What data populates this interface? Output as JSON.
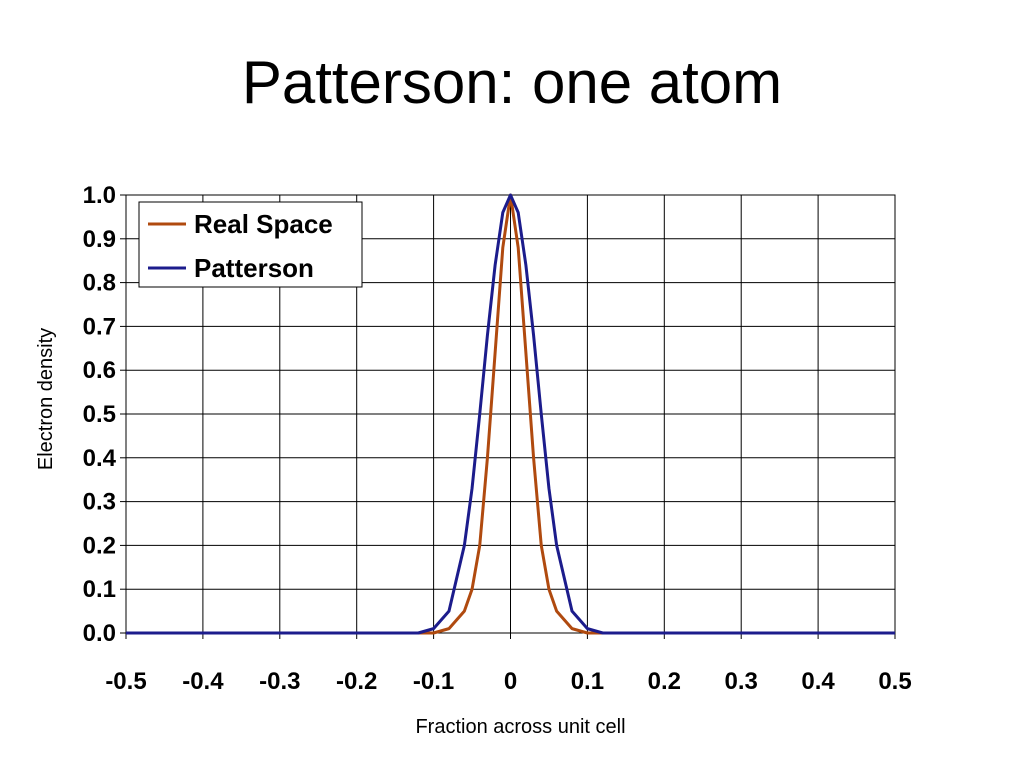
{
  "slide": {
    "title": "Patterson: one atom"
  },
  "chart_data": {
    "type": "line",
    "xlabel": "Fraction across unit cell",
    "ylabel": "Electron density",
    "xlim": [
      -0.5,
      0.5
    ],
    "ylim": [
      0.0,
      1.0
    ],
    "x_ticks": [
      "-0.5",
      "-0.4",
      "-0.3",
      "-0.2",
      "-0.1",
      "0",
      "0.1",
      "0.2",
      "0.3",
      "0.4",
      "0.5"
    ],
    "y_ticks": [
      "0.0",
      "0.1",
      "0.2",
      "0.3",
      "0.4",
      "0.5",
      "0.6",
      "0.7",
      "0.8",
      "0.9",
      "1.0"
    ],
    "grid": true,
    "legend_position": "top-left",
    "series": [
      {
        "name": "Real Space",
        "color": "#b04a0f",
        "x": [
          -0.5,
          -0.1,
          -0.08,
          -0.06,
          -0.05,
          -0.04,
          -0.03,
          -0.02,
          -0.01,
          0.0,
          0.01,
          0.02,
          0.03,
          0.04,
          0.05,
          0.06,
          0.08,
          0.1,
          0.5
        ],
        "y": [
          0.0,
          0.0,
          0.01,
          0.05,
          0.1,
          0.2,
          0.4,
          0.64,
          0.88,
          1.0,
          0.88,
          0.64,
          0.4,
          0.2,
          0.1,
          0.05,
          0.01,
          0.0,
          0.0
        ]
      },
      {
        "name": "Patterson",
        "color": "#1c1c8c",
        "x": [
          -0.5,
          -0.12,
          -0.1,
          -0.08,
          -0.06,
          -0.05,
          -0.04,
          -0.03,
          -0.02,
          -0.01,
          0.0,
          0.01,
          0.02,
          0.03,
          0.04,
          0.05,
          0.06,
          0.08,
          0.1,
          0.12,
          0.5
        ],
        "y": [
          0.0,
          0.0,
          0.01,
          0.05,
          0.2,
          0.33,
          0.5,
          0.68,
          0.84,
          0.96,
          1.0,
          0.96,
          0.84,
          0.68,
          0.5,
          0.33,
          0.2,
          0.05,
          0.01,
          0.0,
          0.0
        ]
      }
    ]
  }
}
